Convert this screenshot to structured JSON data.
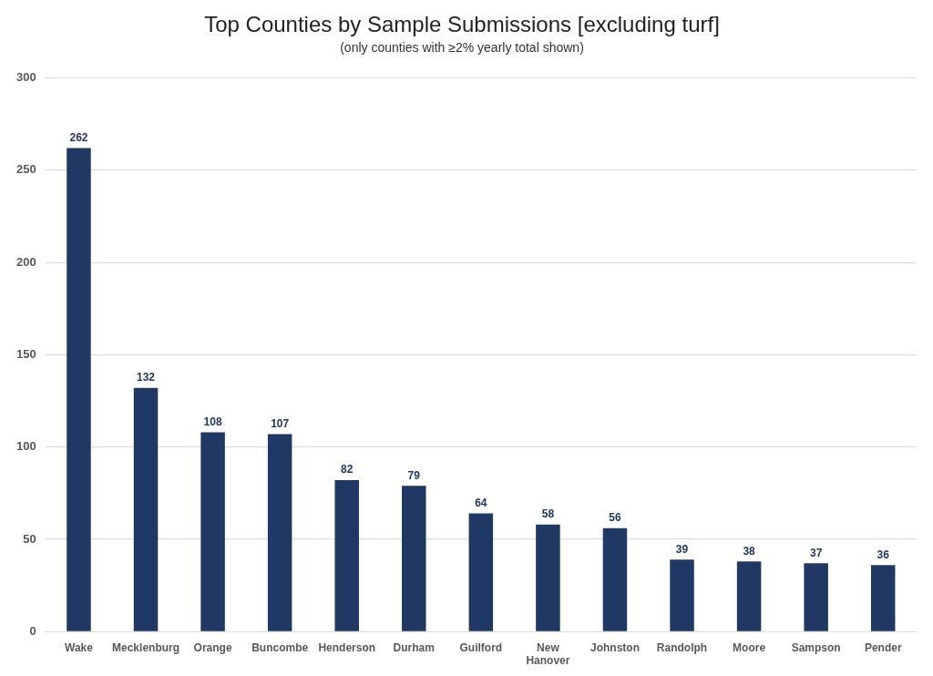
{
  "chart_data": {
    "type": "bar",
    "title": "Top Counties by Sample Submissions [excluding turf]",
    "subtitle": "(only counties with ≥2% yearly total shown)",
    "categories": [
      "Wake",
      "Mecklenburg",
      "Orange",
      "Buncombe",
      "Henderson",
      "Durham",
      "Guilford",
      "New Hanover",
      "Johnston",
      "Randolph",
      "Moore",
      "Sampson",
      "Pender"
    ],
    "values": [
      262,
      132,
      108,
      107,
      82,
      79,
      64,
      58,
      56,
      39,
      38,
      37,
      36
    ],
    "color": "#1f3864",
    "ylim": [
      0,
      300
    ],
    "yticks": [
      0,
      50,
      100,
      150,
      200,
      250,
      300
    ],
    "grid": true,
    "data_labels": true
  }
}
